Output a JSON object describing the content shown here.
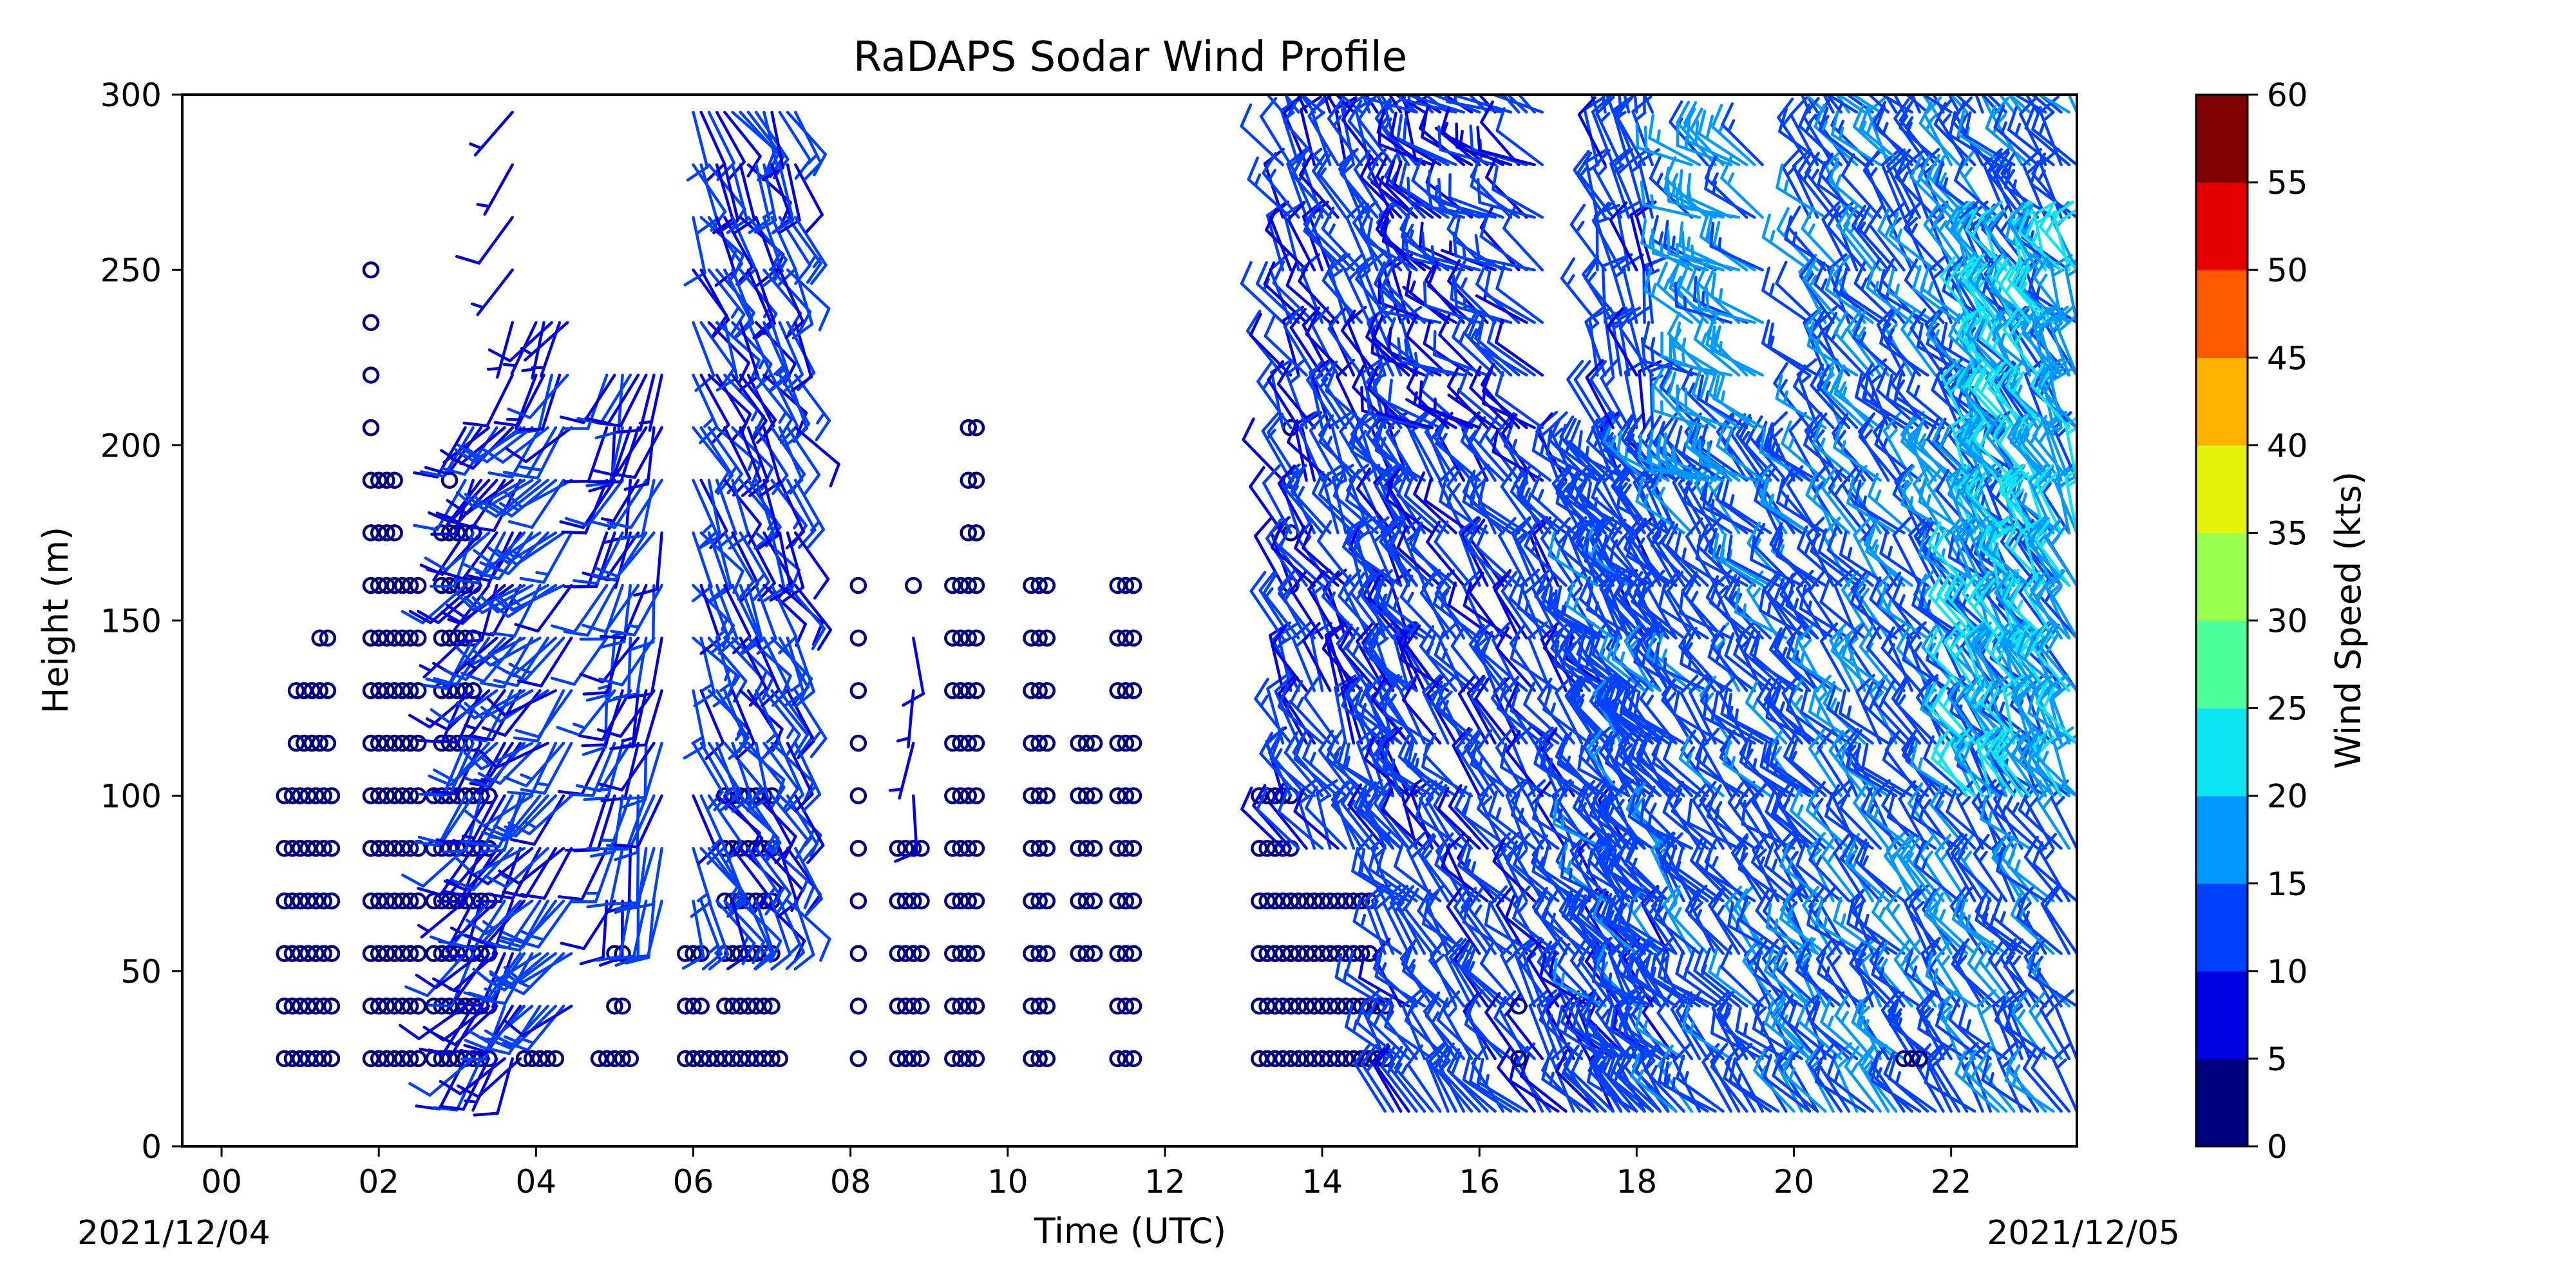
{
  "chart_data": {
    "type": "wind-barb",
    "title": "RaDAPS Sodar Wind Profile",
    "xlabel": "Time (UTC)",
    "ylabel": "Height (m)",
    "xlim": [
      -0.5,
      23.6
    ],
    "ylim": [
      0,
      300
    ],
    "x_ticks": [
      0,
      2,
      4,
      6,
      8,
      10,
      12,
      14,
      16,
      18,
      20,
      22
    ],
    "x_tick_labels": [
      "00",
      "02",
      "04",
      "06",
      "08",
      "10",
      "12",
      "14",
      "16",
      "18",
      "20",
      "22"
    ],
    "y_ticks": [
      0,
      50,
      100,
      150,
      200,
      250,
      300
    ],
    "y_tick_labels": [
      "0",
      "50",
      "100",
      "150",
      "200",
      "250",
      "300"
    ],
    "start_date": "2021/12/04",
    "end_date": "2021/12/05",
    "colorbar": {
      "label": "Wind Speed (kts)",
      "levels": [
        0,
        5,
        10,
        15,
        20,
        25,
        30,
        35,
        40,
        45,
        50,
        55,
        60
      ],
      "tick_labels": [
        "0",
        "5",
        "10",
        "15",
        "20",
        "25",
        "30",
        "35",
        "40",
        "45",
        "50",
        "55",
        "60"
      ],
      "colors": [
        "#00007f",
        "#0000e1",
        "#0040ff",
        "#0099ff",
        "#0de5f3",
        "#4dff99",
        "#99ff4d",
        "#e5f30d",
        "#ffb200",
        "#ff5a00",
        "#e40000",
        "#7f0000"
      ]
    },
    "series": [
      {
        "x_start": 0.8,
        "x_end": 1.4,
        "heights": [
          25,
          40,
          55,
          70,
          85,
          100
        ],
        "type": "calm"
      },
      {
        "x_start": 0.95,
        "x_end": 1.4,
        "heights": [
          115,
          130
        ],
        "type": "calm"
      },
      {
        "x_start": 1.25,
        "x_end": 1.4,
        "heights": [
          145
        ],
        "type": "calm"
      },
      {
        "x_start": 1.9,
        "x_end": 2.55,
        "heights": [
          25,
          40,
          55,
          70,
          85,
          100,
          115,
          130,
          145,
          160
        ],
        "type": "calm"
      },
      {
        "x_start": 1.9,
        "x_end": 2.2,
        "heights": [
          175,
          190
        ],
        "type": "calm"
      },
      {
        "x_start": 1.9,
        "x_end": 1.9,
        "heights": [
          205,
          220,
          235,
          250
        ],
        "type": "calm"
      },
      {
        "x_start": 2.7,
        "x_end": 3.4,
        "heights": [
          25,
          40,
          55,
          70,
          85,
          100
        ],
        "type": "calm"
      },
      {
        "x_start": 2.8,
        "x_end": 3.2,
        "heights": [
          115,
          130,
          145,
          160,
          175
        ],
        "type": "calm"
      },
      {
        "x_start": 2.9,
        "x_end": 2.9,
        "heights": [
          190
        ],
        "type": "calm"
      },
      {
        "x_start": 3.1,
        "x_end": 3.85,
        "heights": [
          25,
          40,
          55,
          70,
          85,
          100,
          115,
          130,
          145,
          160,
          175,
          190,
          205
        ],
        "type": "barb",
        "speed": 9,
        "dir": 215
      },
      {
        "x_start": 3.85,
        "x_end": 4.5,
        "heights": [
          40,
          55,
          70,
          85,
          100,
          115,
          130,
          145,
          160,
          175,
          190,
          205
        ],
        "type": "barb",
        "speed": 12,
        "dir": 225
      },
      {
        "x_start": 3.7,
        "x_end": 3.7,
        "heights": [
          220,
          235,
          250,
          265,
          280,
          295
        ],
        "type": "barb",
        "speed": 8,
        "dir": 210
      },
      {
        "x_start": 4.0,
        "x_end": 4.4,
        "heights": [
          220,
          235
        ],
        "type": "barb",
        "speed": 8,
        "dir": 210
      },
      {
        "x_start": 3.85,
        "x_end": 4.25,
        "heights": [
          25
        ],
        "type": "calm"
      },
      {
        "x_start": 4.8,
        "x_end": 5.2,
        "heights": [
          25
        ],
        "type": "calm"
      },
      {
        "x_start": 5.0,
        "x_end": 5.1,
        "heights": [
          40,
          55
        ],
        "type": "calm"
      },
      {
        "x_start": 4.9,
        "x_end": 5.6,
        "heights": [
          70,
          85,
          100,
          115,
          130,
          145,
          160,
          175,
          190,
          205,
          220
        ],
        "type": "barb",
        "speed": 10,
        "dir": 200
      },
      {
        "x_start": 5.9,
        "x_end": 7.1,
        "heights": [
          25
        ],
        "type": "calm"
      },
      {
        "x_start": 5.9,
        "x_end": 6.1,
        "heights": [
          40,
          55
        ],
        "type": "calm"
      },
      {
        "x_start": 6.4,
        "x_end": 7.0,
        "heights": [
          40,
          55,
          70,
          85,
          100
        ],
        "type": "calm"
      },
      {
        "x_start": 6.0,
        "x_end": 7.3,
        "heights": [
          70,
          85,
          100,
          115,
          130,
          145,
          160,
          175,
          190,
          205,
          220,
          235,
          250,
          265,
          280,
          295
        ],
        "type": "barb",
        "speed": 11,
        "dir": 150
      },
      {
        "x_start": 8.1,
        "x_end": 8.1,
        "heights": [
          25,
          40,
          55,
          70,
          85,
          100,
          115,
          130,
          145,
          160
        ],
        "type": "calm"
      },
      {
        "x_start": 8.6,
        "x_end": 8.9,
        "heights": [
          25,
          40,
          55,
          70,
          85
        ],
        "type": "calm"
      },
      {
        "x_start": 8.8,
        "x_end": 8.8,
        "heights": [
          100,
          115,
          130,
          145
        ],
        "type": "barb",
        "speed": 7,
        "dir": 180
      },
      {
        "x_start": 8.8,
        "x_end": 8.8,
        "heights": [
          160
        ],
        "type": "calm"
      },
      {
        "x_start": 9.3,
        "x_end": 9.6,
        "heights": [
          25,
          40,
          55,
          70,
          85,
          100,
          115,
          130,
          145,
          160
        ],
        "type": "calm"
      },
      {
        "x_start": 9.5,
        "x_end": 9.6,
        "heights": [
          175,
          190,
          205
        ],
        "type": "calm"
      },
      {
        "x_start": 10.3,
        "x_end": 10.5,
        "heights": [
          25,
          40,
          55,
          70,
          85,
          100,
          115,
          130,
          145,
          160
        ],
        "type": "calm"
      },
      {
        "x_start": 10.9,
        "x_end": 11.1,
        "heights": [
          55,
          70,
          85,
          100,
          115
        ],
        "type": "calm"
      },
      {
        "x_start": 11.4,
        "x_end": 11.6,
        "heights": [
          25,
          40,
          55,
          70,
          85,
          100,
          115,
          130,
          145,
          160
        ],
        "type": "calm"
      },
      {
        "x_start": 13.2,
        "x_end": 14.8,
        "heights": [
          25,
          40
        ],
        "type": "calm"
      },
      {
        "x_start": 13.2,
        "x_end": 13.6,
        "heights": [
          55,
          70,
          85,
          100
        ],
        "type": "calm"
      },
      {
        "x_start": 13.6,
        "x_end": 14.6,
        "heights": [
          55,
          70
        ],
        "type": "calm"
      },
      {
        "x_start": 13.6,
        "x_end": 13.6,
        "heights": [
          160,
          175,
          190,
          205
        ],
        "type": "calm"
      },
      {
        "x_start": 13.5,
        "x_end": 15.2,
        "heights": [
          85,
          100,
          115,
          130,
          145,
          160,
          175,
          190,
          205,
          220,
          235,
          250,
          265,
          280,
          295
        ],
        "type": "barb",
        "speed": 11,
        "dir": 330
      },
      {
        "x_start": 14.8,
        "x_end": 18.5,
        "heights": [
          10,
          25,
          40,
          55,
          70,
          85,
          100,
          115,
          130,
          145,
          160,
          175,
          190
        ],
        "type": "barb",
        "speed": 12,
        "dir": 320
      },
      {
        "x_start": 15.2,
        "x_end": 16.8,
        "heights": [
          205,
          220,
          235,
          250,
          265,
          280,
          295
        ],
        "type": "barb",
        "speed": 10,
        "dir": 300
      },
      {
        "x_start": 17.5,
        "x_end": 20.3,
        "heights": [
          10,
          25,
          40,
          55,
          70,
          85,
          100,
          115,
          130,
          145,
          160,
          175,
          190
        ],
        "type": "barb",
        "speed": 13,
        "dir": 315
      },
      {
        "x_start": 17.5,
        "x_end": 18.2,
        "heights": [
          205,
          220,
          235,
          250,
          265,
          280,
          295
        ],
        "type": "barb",
        "speed": 12,
        "dir": 340
      },
      {
        "x_start": 18.7,
        "x_end": 19.6,
        "heights": [
          190,
          205,
          220,
          235,
          250,
          265,
          280
        ],
        "type": "barb",
        "speed": 17,
        "dir": 300
      },
      {
        "x_start": 20.2,
        "x_end": 23.6,
        "heights": [
          10,
          25,
          40,
          55,
          70,
          85,
          100,
          115,
          130,
          145,
          160,
          175,
          190,
          205,
          220,
          235,
          250,
          265,
          280,
          295
        ],
        "type": "barb",
        "speed": 14,
        "dir": 320
      },
      {
        "x_start": 22.2,
        "x_end": 23.6,
        "heights": [
          100,
          115,
          130,
          145,
          160,
          175,
          190,
          205,
          220,
          235,
          250
        ],
        "type": "barb",
        "speed": 20,
        "dir": 330
      },
      {
        "x_start": 16.5,
        "x_end": 16.5,
        "heights": [
          25,
          40
        ],
        "type": "calm"
      },
      {
        "x_start": 21.4,
        "x_end": 21.6,
        "heights": [
          25
        ],
        "type": "calm"
      }
    ]
  }
}
